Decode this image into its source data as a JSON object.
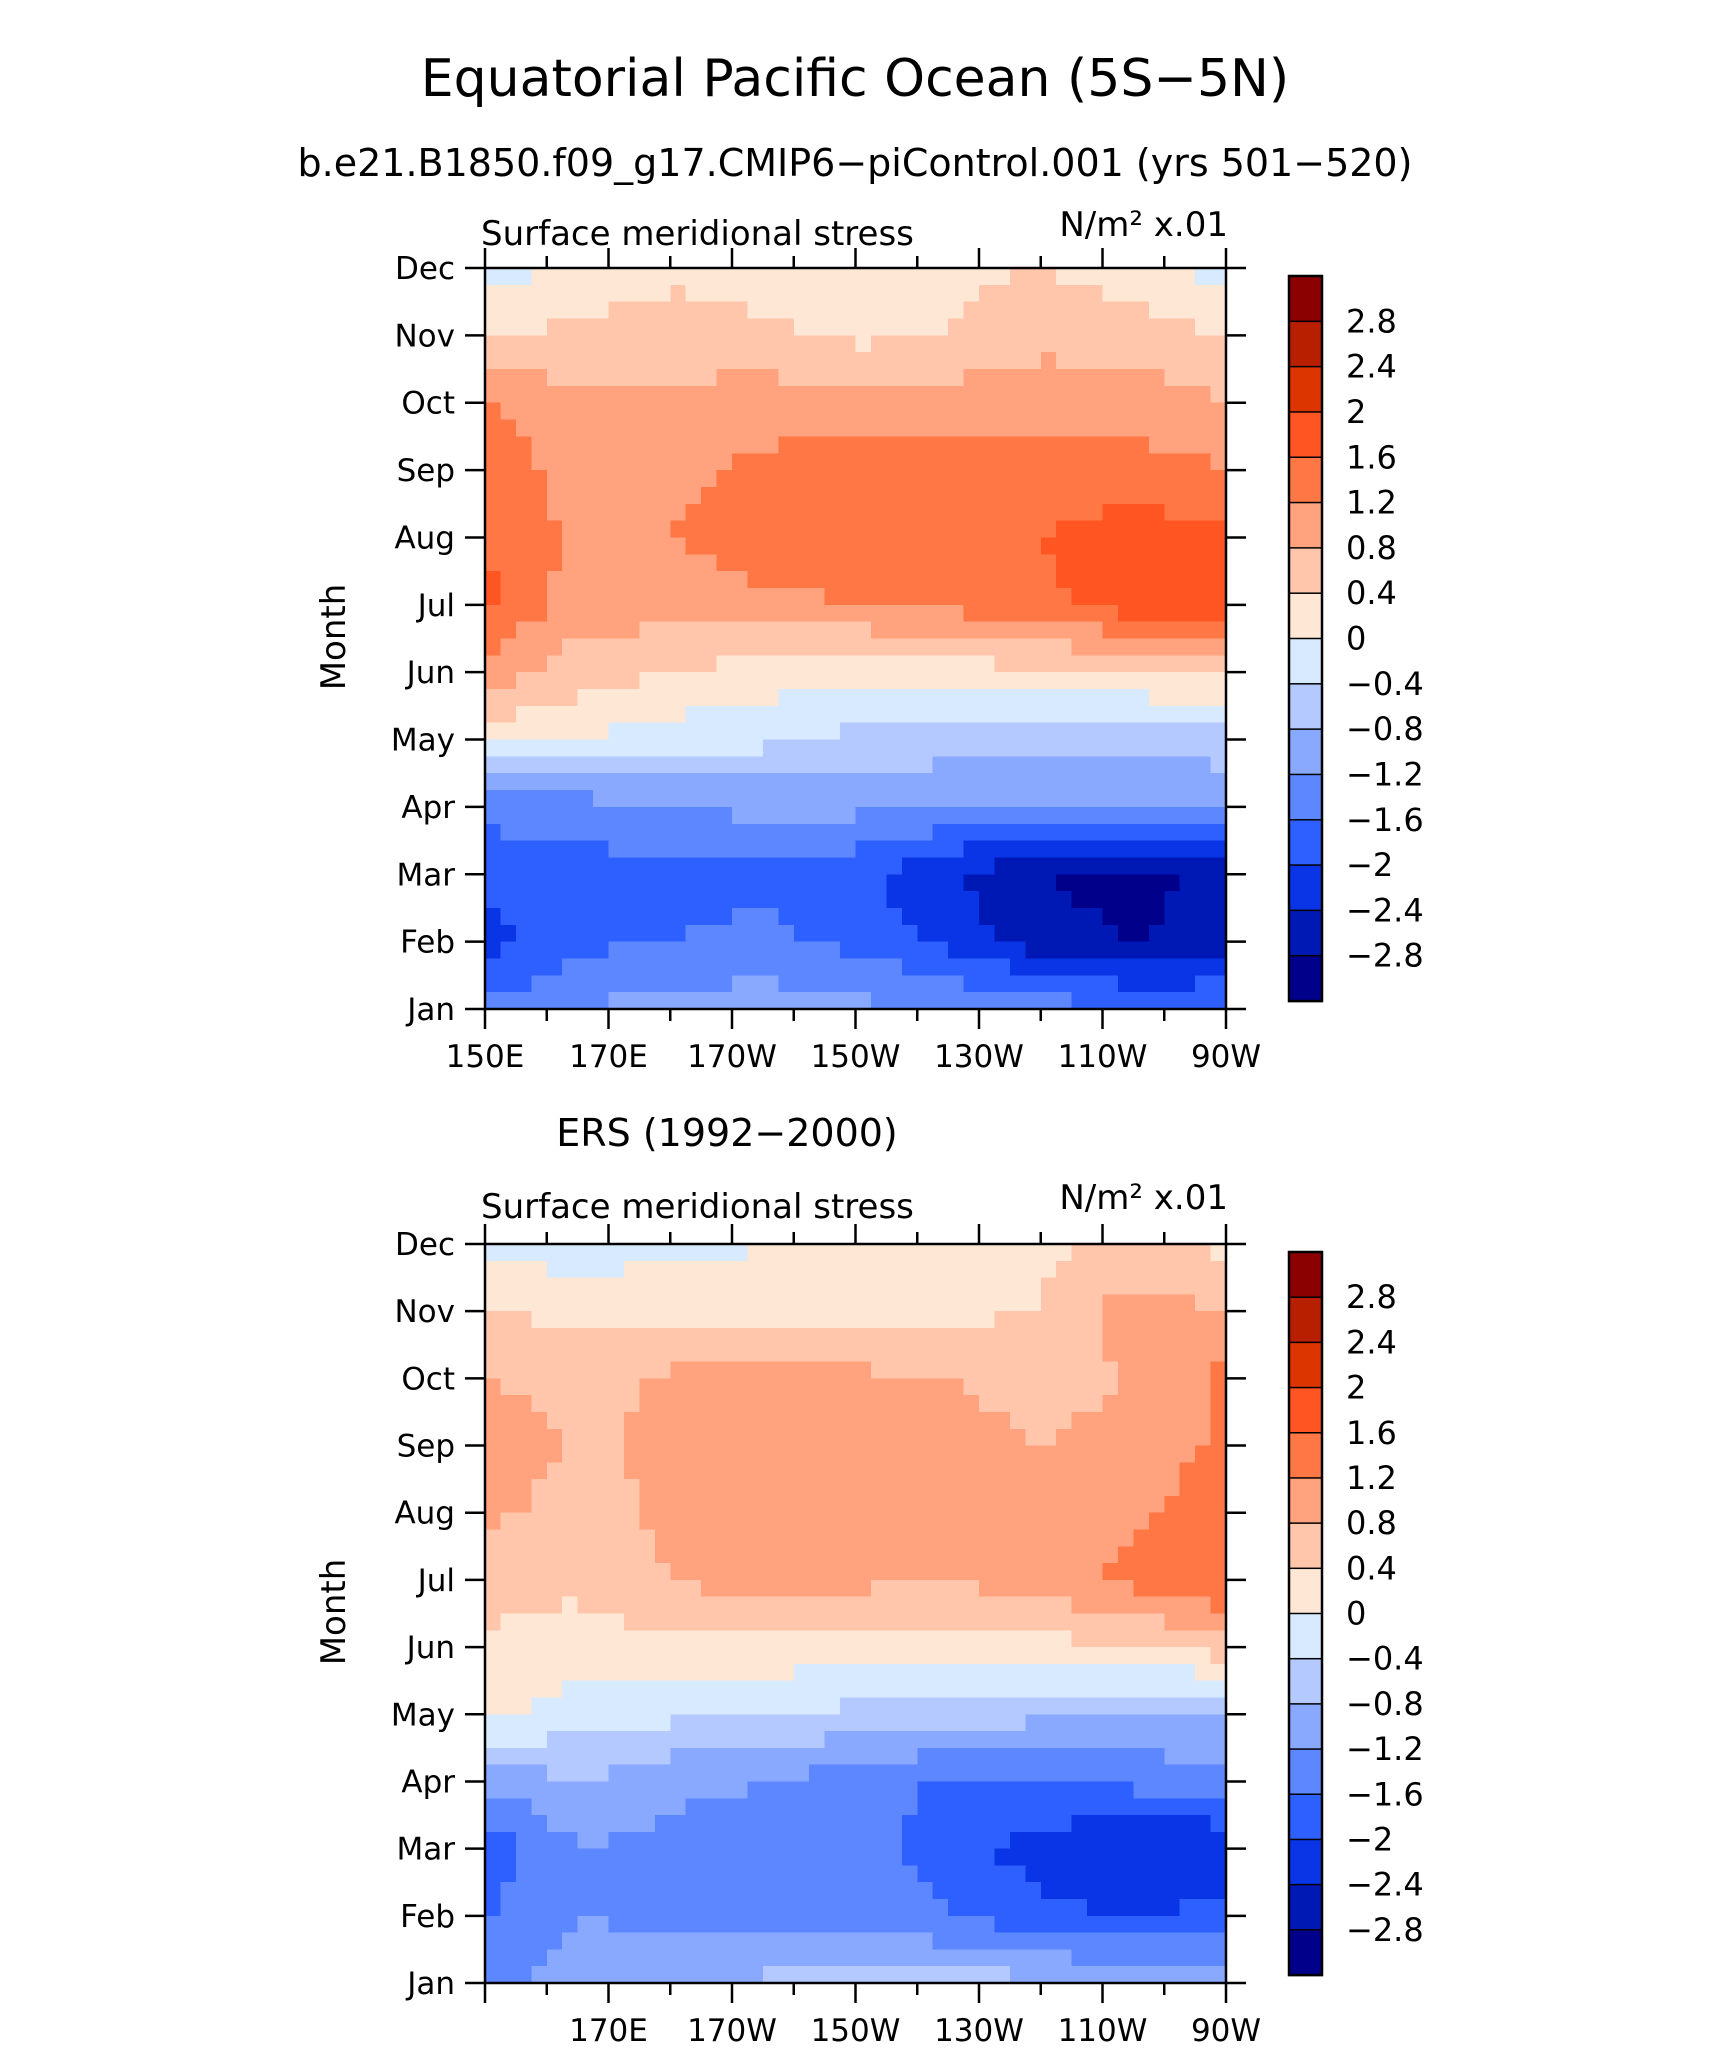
{
  "figure": {
    "title": "Equatorial Pacific Ocean (5S−5N)",
    "subtitle": "b.e21.B1850.f09_g17.CMIP6−piControl.001 (yrs 501−520)"
  },
  "colorbar": {
    "levels": [
      "2.8",
      "2.4",
      "2",
      "1.6",
      "1.2",
      "0.8",
      "0.4",
      "0",
      "−0.4",
      "−0.8",
      "−1.2",
      "−1.6",
      "−2",
      "−2.4",
      "−2.8"
    ],
    "colors": [
      "#8b0000",
      "#b71f00",
      "#dd3500",
      "#ff5522",
      "#ff7744",
      "#ffa27d",
      "#ffc6ab",
      "#ffe7d6",
      "#d8eaff",
      "#b3c9ff",
      "#88a9ff",
      "#5c87ff",
      "#2e60ff",
      "#0a35e6",
      "#0019b4",
      "#00008b"
    ]
  },
  "chart_data": [
    {
      "type": "heatmap",
      "title": "",
      "left_label": "Surface meridional stress",
      "right_label": "N/m² x.01",
      "ylabel": "Month",
      "y_categories": [
        "Jan",
        "Feb",
        "Mar",
        "Apr",
        "May",
        "Jun",
        "Jul",
        "Aug",
        "Sep",
        "Oct",
        "Nov",
        "Dec"
      ],
      "x_tick_labels": [
        "150E",
        "170E",
        "170W",
        "150W",
        "130W",
        "110W",
        "90W"
      ],
      "x_tick_lons": [
        150,
        170,
        190,
        210,
        230,
        250,
        270
      ],
      "xlim": [
        150,
        270
      ],
      "x_lons": [
        150,
        165,
        180,
        195,
        210,
        225,
        240,
        255,
        270
      ],
      "values": [
        [
          -1.5,
          -1.2,
          -1.0,
          -1.0,
          -1.1,
          -1.2,
          -1.4,
          -1.6,
          -1.6
        ],
        [
          -2.2,
          -1.7,
          -1.6,
          -1.5,
          -1.7,
          -2.1,
          -2.6,
          -2.8,
          -2.6
        ],
        [
          -1.8,
          -1.8,
          -1.7,
          -1.7,
          -1.9,
          -2.4,
          -2.8,
          -3.0,
          -2.6
        ],
        [
          -1.5,
          -1.4,
          -1.2,
          -1.1,
          -1.1,
          -1.2,
          -1.2,
          -1.2,
          -1.1
        ],
        [
          0.2,
          0.0,
          -0.2,
          -0.3,
          -0.5,
          -0.6,
          -0.7,
          -0.7,
          -0.6
        ],
        [
          1.0,
          0.6,
          0.4,
          0.2,
          0.1,
          0.2,
          0.3,
          0.4,
          0.5
        ],
        [
          1.7,
          1.0,
          1.0,
          1.1,
          1.2,
          1.3,
          1.5,
          1.8,
          1.9
        ],
        [
          1.6,
          1.1,
          1.2,
          1.4,
          1.5,
          1.5,
          1.6,
          1.8,
          1.7
        ],
        [
          1.5,
          1.0,
          1.1,
          1.3,
          1.4,
          1.4,
          1.4,
          1.4,
          1.2
        ],
        [
          1.2,
          0.9,
          0.9,
          1.0,
          1.0,
          1.0,
          1.0,
          1.0,
          0.8
        ],
        [
          0.4,
          0.5,
          0.6,
          0.5,
          0.3,
          0.4,
          0.7,
          0.6,
          0.4
        ],
        [
          -0.2,
          0.1,
          0.3,
          0.2,
          0.2,
          0.3,
          0.4,
          0.2,
          -0.2
        ]
      ]
    },
    {
      "type": "heatmap",
      "title": "ERS (1992−2000)",
      "left_label": "Surface meridional stress",
      "right_label": "N/m² x.01",
      "ylabel": "Month",
      "y_categories": [
        "Jan",
        "Feb",
        "Mar",
        "Apr",
        "May",
        "Jun",
        "Jul",
        "Aug",
        "Sep",
        "Oct",
        "Nov",
        "Dec"
      ],
      "x_tick_labels": [
        "170E",
        "170W",
        "150W",
        "130W",
        "110W",
        "90W"
      ],
      "x_tick_lons": [
        170,
        190,
        210,
        230,
        250,
        270
      ],
      "xlim": [
        150,
        270
      ],
      "x_lons": [
        150,
        165,
        180,
        195,
        210,
        225,
        240,
        255,
        270
      ],
      "values": [
        [
          -1.3,
          -1.0,
          -1.0,
          -0.7,
          -0.5,
          -0.6,
          -0.7,
          -0.9,
          -1.1
        ],
        [
          -1.6,
          -1.2,
          -1.3,
          -1.4,
          -1.3,
          -1.6,
          -1.9,
          -2.0,
          -1.9
        ],
        [
          -1.9,
          -1.2,
          -1.3,
          -1.4,
          -1.4,
          -1.8,
          -2.2,
          -2.4,
          -2.4
        ],
        [
          -1.1,
          -0.8,
          -1.1,
          -1.2,
          -1.4,
          -1.7,
          -1.6,
          -1.5,
          -1.3
        ],
        [
          0.1,
          -0.2,
          -0.3,
          -0.4,
          -0.5,
          -0.6,
          -0.7,
          -0.8,
          -0.8
        ],
        [
          0.3,
          0.2,
          0.3,
          0.3,
          0.2,
          0.2,
          0.3,
          0.3,
          0.6
        ],
        [
          0.6,
          0.5,
          0.8,
          1.0,
          0.9,
          0.8,
          1.0,
          1.3,
          1.6
        ],
        [
          0.9,
          0.6,
          0.9,
          1.1,
          0.9,
          0.9,
          0.9,
          1.1,
          1.5
        ],
        [
          1.2,
          0.7,
          0.9,
          1.0,
          1.0,
          0.9,
          0.8,
          0.9,
          1.3
        ],
        [
          0.8,
          0.6,
          0.9,
          0.9,
          0.9,
          0.8,
          0.7,
          0.8,
          1.3
        ],
        [
          0.4,
          0.3,
          0.2,
          0.1,
          0.2,
          0.3,
          0.4,
          1.0,
          0.8
        ],
        [
          -0.2,
          -0.2,
          -0.1,
          0.0,
          0.1,
          0.2,
          0.3,
          0.5,
          0.3
        ]
      ]
    }
  ]
}
